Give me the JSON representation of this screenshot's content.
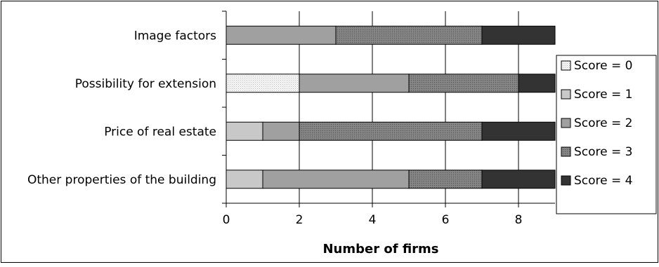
{
  "chart_data": {
    "type": "bar",
    "orientation": "horizontal",
    "stacked": true,
    "title": "",
    "xlabel": "Number of firms",
    "ylabel": "",
    "xlim": [
      0,
      9
    ],
    "xticks": [
      0,
      2,
      4,
      6,
      8
    ],
    "xtick_labels": [
      "0",
      "2",
      "4",
      "6",
      "8"
    ],
    "grid": "vertical",
    "legend_position": "right",
    "categories": [
      "Image factors",
      "Possibility for extension",
      "Price of real estate",
      "Other properties of the building"
    ],
    "series": [
      {
        "name": "Score = 0",
        "values": [
          0,
          2,
          0,
          0
        ],
        "color": "#f2f2f2",
        "pattern": "dots-light"
      },
      {
        "name": "Score = 1",
        "values": [
          0,
          0,
          1,
          1
        ],
        "color": "#c8c8c8",
        "pattern": "none"
      },
      {
        "name": "Score = 2",
        "values": [
          3,
          3,
          1,
          4
        ],
        "color": "#a0a0a0",
        "pattern": "none"
      },
      {
        "name": "Score = 3",
        "values": [
          4,
          3,
          5,
          2
        ],
        "color": "#7a7a7a",
        "pattern": "dots-dark"
      },
      {
        "name": "Score = 4",
        "values": [
          2,
          1,
          2,
          2
        ],
        "color": "#333333",
        "pattern": "none"
      }
    ]
  }
}
